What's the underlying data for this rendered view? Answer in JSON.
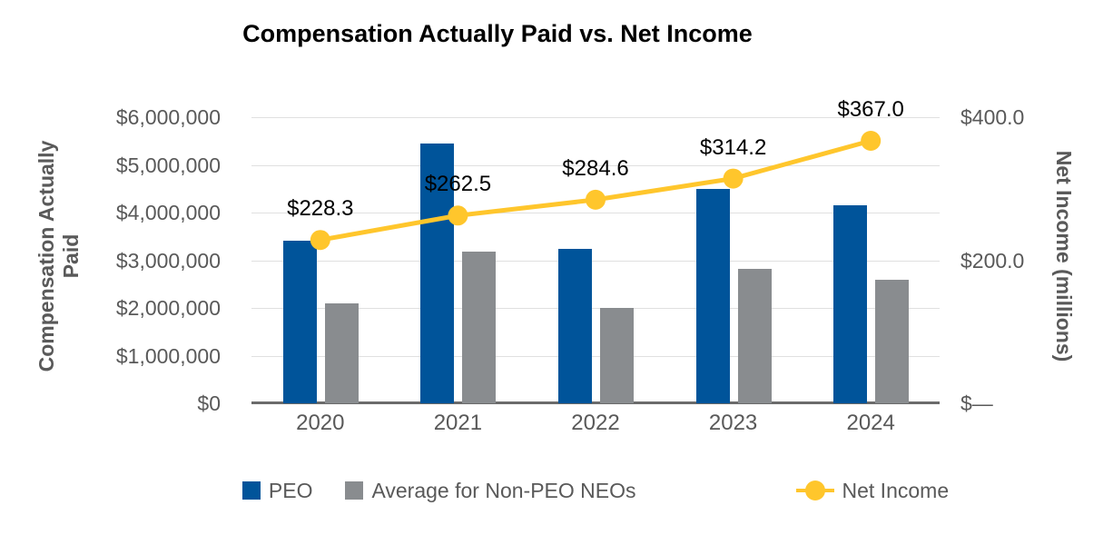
{
  "title": "Compensation Actually Paid vs. Net Income",
  "colors": {
    "peo_bar": "#00549A",
    "non_peo_bar": "#898C8F",
    "net_income_line": "#FFC62C",
    "grid": "#E0E0E0",
    "axis_line": "#6B6B6B",
    "tick_text": "#595959",
    "title_text": "#000000",
    "data_label_text": "#000000"
  },
  "axes": {
    "left": {
      "title_lines": [
        "Compensation Actually",
        "Paid"
      ],
      "ticks": [
        "$6,000,000",
        "$5,000,000",
        "$4,000,000",
        "$3,000,000",
        "$2,000,000",
        "$1,000,000",
        "$0"
      ]
    },
    "right": {
      "title": "Net Income (millions)",
      "ticks": [
        "$400.0",
        "$200.0",
        "$—"
      ]
    },
    "x": {
      "categories": [
        "2020",
        "2021",
        "2022",
        "2023",
        "2024"
      ]
    }
  },
  "legend": {
    "items": [
      {
        "label": "PEO",
        "marker": "square",
        "color": "#00549A"
      },
      {
        "label": "Average for Non-PEO NEOs",
        "marker": "square",
        "color": "#898C8F"
      },
      {
        "label": "Net Income",
        "marker": "line-circle",
        "color": "#FFC62C"
      }
    ]
  },
  "chart_data": {
    "type": "bar",
    "subtype": "grouped-bars-with-line-overlay",
    "title": "Compensation Actually Paid vs. Net Income",
    "categories": [
      "2020",
      "2021",
      "2022",
      "2023",
      "2024"
    ],
    "series": [
      {
        "name": "PEO",
        "type": "bar",
        "axis": "left",
        "color": "#00549A",
        "values": [
          3410000,
          5450000,
          3240000,
          4500000,
          4150000
        ]
      },
      {
        "name": "Average for Non-PEO NEOs",
        "type": "bar",
        "axis": "left",
        "color": "#898C8F",
        "values": [
          2100000,
          3180000,
          2000000,
          2820000,
          2590000
        ]
      },
      {
        "name": "Net Income",
        "type": "line",
        "axis": "right",
        "color": "#FFC62C",
        "values": [
          228.3,
          262.5,
          284.6,
          314.2,
          367.0
        ],
        "point_labels": [
          "$228.3",
          "$262.5",
          "$284.6",
          "$314.2",
          "$367.0"
        ]
      }
    ],
    "left_axis": {
      "label": "Compensation Actually Paid",
      "min": 0,
      "max": 6000000,
      "tick_step": 1000000,
      "tick_format": "$#,##0"
    },
    "right_axis": {
      "label": "Net Income (millions)",
      "min": 0,
      "max": 400,
      "ticks_shown": [
        "$400.0",
        "$200.0",
        "$—"
      ]
    },
    "grid": true,
    "legend_position": "bottom"
  }
}
